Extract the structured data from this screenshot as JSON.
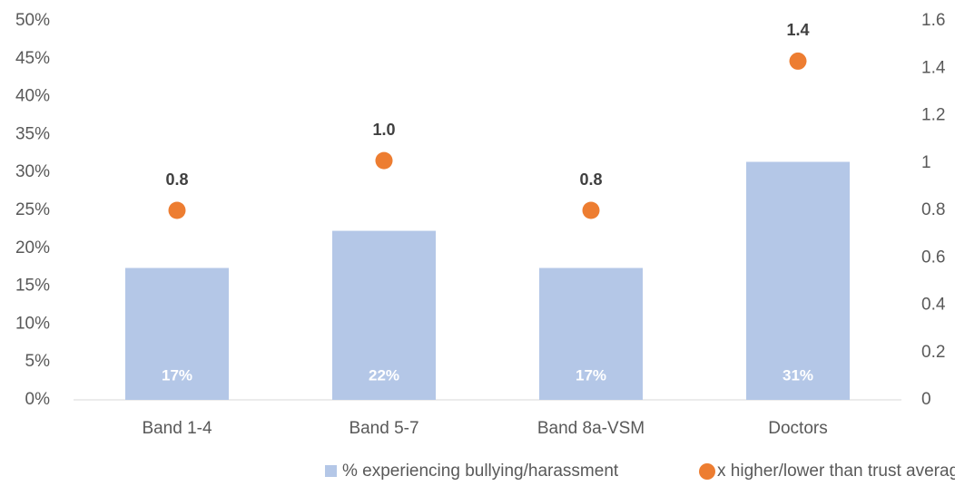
{
  "chart_data": {
    "type": "bar",
    "categories": [
      "Band 1-4",
      "Band 5-7",
      "Band 8a-VSM",
      "Doctors"
    ],
    "series": [
      {
        "name": "% experiencing bullying/harassment",
        "type": "bar",
        "color": "#b4c7e7",
        "values": [
          17.4,
          22.3,
          17.4,
          31.4
        ],
        "value_labels": [
          "17%",
          "22%",
          "17%",
          "31%"
        ]
      },
      {
        "name": "x higher/lower than trust average",
        "type": "scatter",
        "axis": "y2",
        "color": "#ed7d31",
        "values": [
          0.8,
          1.01,
          0.8,
          1.43
        ],
        "value_labels": [
          "0.8",
          "1.0",
          "0.8",
          "1.4"
        ]
      }
    ],
    "ylim": [
      0,
      50
    ],
    "yticks": [
      {
        "value": 0,
        "label": "0%"
      },
      {
        "value": 5,
        "label": "5%"
      },
      {
        "value": 10,
        "label": "10%"
      },
      {
        "value": 15,
        "label": "15%"
      },
      {
        "value": 20,
        "label": "20%"
      },
      {
        "value": 25,
        "label": "25%"
      },
      {
        "value": 30,
        "label": "30%"
      },
      {
        "value": 35,
        "label": "35%"
      },
      {
        "value": 40,
        "label": "40%"
      },
      {
        "value": 45,
        "label": "45%"
      },
      {
        "value": 50,
        "label": "50%"
      }
    ],
    "y2lim": [
      0,
      1.6
    ],
    "y2ticks": [
      0,
      0.2,
      0.4,
      0.6,
      0.8,
      1,
      1.2,
      1.4,
      1.6
    ],
    "grid": false,
    "legend": "bottom"
  }
}
